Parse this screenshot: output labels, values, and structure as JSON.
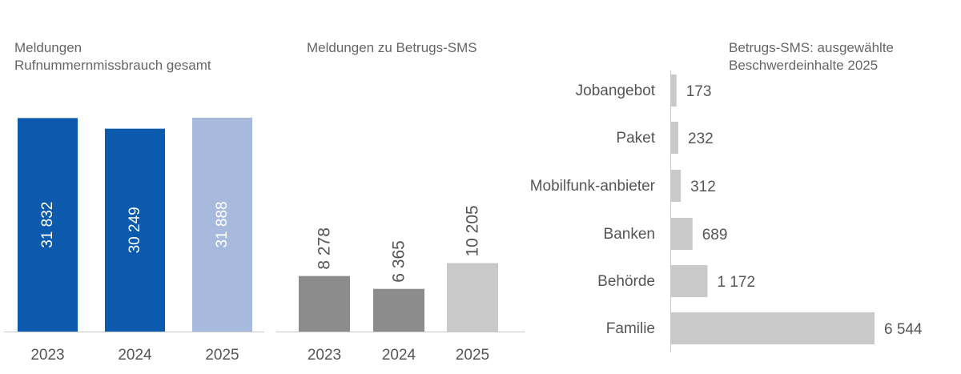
{
  "chart_data": [
    {
      "type": "bar",
      "title": "Meldungen Rufnummernmissbrauch gesamt",
      "title_lines": [
        "Meldungen",
        "Rufnummernmissbrauch gesamt"
      ],
      "categories": [
        "2023",
        "2024",
        "2025"
      ],
      "values": [
        31832,
        30249,
        31888
      ],
      "value_labels": [
        "31 832",
        "30 249",
        "31 888"
      ],
      "colors": [
        "#0b5aad",
        "#0b5aad",
        "#a7bade"
      ],
      "label_color": "#ffffff",
      "ylim": [
        0,
        32000
      ],
      "grid": false,
      "legend": "none"
    },
    {
      "type": "bar",
      "title": "Meldungen zu Betrugs-SMS",
      "title_lines": [
        "Meldungen zu Betrugs-SMS"
      ],
      "categories": [
        "2023",
        "2024",
        "2025"
      ],
      "values": [
        8278,
        6365,
        10205
      ],
      "value_labels": [
        "8 278",
        "6 365",
        "10 205"
      ],
      "colors": [
        "#8c8c8c",
        "#8c8c8c",
        "#c9c9c9"
      ],
      "label_color": "#555555",
      "ylim": [
        0,
        32000
      ],
      "grid": false,
      "legend": "none"
    },
    {
      "type": "bar",
      "orientation": "horizontal",
      "title": "Betrugs-SMS: ausgewählte Beschwerdeinhalte 2025",
      "title_lines": [
        "Betrugs-SMS: ausgewählte",
        "Beschwerdeinhalte 2025"
      ],
      "categories": [
        "Jobangebot",
        "Paket",
        "Mobilfunk-anbieter",
        "Banken",
        "Behörde",
        "Familie"
      ],
      "values": [
        173,
        232,
        312,
        689,
        1172,
        6544
      ],
      "value_labels": [
        "173",
        "232",
        "312",
        "689",
        "1 172",
        "6 544"
      ],
      "colors": [
        "#c9c9c9",
        "#c9c9c9",
        "#c9c9c9",
        "#c9c9c9",
        "#c9c9c9",
        "#c9c9c9"
      ],
      "label_color": "#555555",
      "xlim": [
        0,
        6544
      ],
      "grid": false,
      "legend": "none"
    }
  ]
}
